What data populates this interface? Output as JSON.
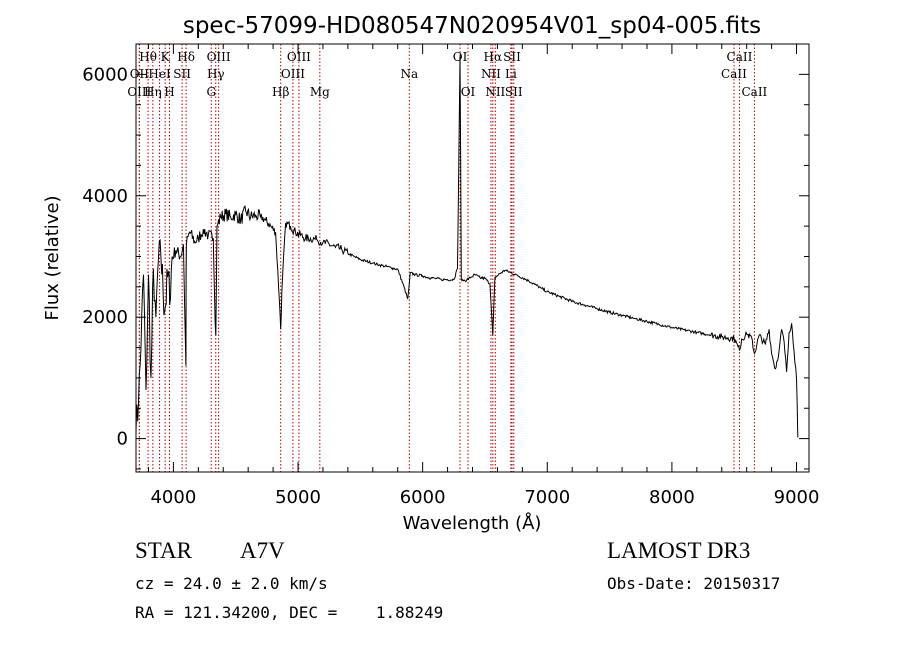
{
  "chart_data": {
    "type": "line",
    "title": "spec-57099-HD080547N020954V01_sp04-005.fits",
    "xlabel": "Wavelength (Å)",
    "ylabel": "Flux (relative)",
    "xlim": [
      3700,
      9100
    ],
    "ylim": [
      -550,
      6500
    ],
    "xticks": [
      4000,
      5000,
      6000,
      7000,
      8000,
      9000
    ],
    "xtick_labels": [
      "4000",
      "5000",
      "6000",
      "7000",
      "8000",
      "9000"
    ],
    "yticks": [
      0,
      2000,
      4000,
      6000
    ],
    "ytick_labels": [
      "0",
      "2000",
      "4000",
      "6000"
    ],
    "series": [
      {
        "name": "flux",
        "x": [
          3700,
          3720,
          3740,
          3760,
          3780,
          3800,
          3820,
          3840,
          3860,
          3880,
          3900,
          3930,
          3960,
          3970,
          3990,
          4020,
          4060,
          4080,
          4100,
          4102,
          4104,
          4130,
          4170,
          4200,
          4240,
          4280,
          4320,
          4330,
          4340,
          4345,
          4350,
          4380,
          4420,
          4460,
          4500,
          4540,
          4580,
          4620,
          4660,
          4700,
          4740,
          4780,
          4820,
          4850,
          4861,
          4870,
          4900,
          4940,
          4980,
          5020,
          5060,
          5100,
          5150,
          5200,
          5250,
          5300,
          5350,
          5400,
          5450,
          5500,
          5550,
          5600,
          5650,
          5700,
          5750,
          5800,
          5850,
          5880,
          5893,
          5900,
          5940,
          6000,
          6050,
          6100,
          6150,
          6200,
          6250,
          6280,
          6300,
          6310,
          6320,
          6340,
          6380,
          6420,
          6460,
          6500,
          6540,
          6563,
          6580,
          6620,
          6660,
          6700,
          6750,
          6800,
          6850,
          6900,
          6950,
          7000,
          7100,
          7200,
          7300,
          7400,
          7500,
          7600,
          7700,
          7800,
          7900,
          8000,
          8100,
          8200,
          8300,
          8400,
          8450,
          8500,
          8542,
          8560,
          8600,
          8640,
          8662,
          8700,
          8750,
          8780,
          8800,
          8830,
          8860,
          8880,
          8900,
          8920,
          8940,
          8960,
          8980,
          9000,
          9010
        ],
        "values": [
          100,
          600,
          1500,
          2700,
          800,
          2700,
          1000,
          2800,
          2000,
          2950,
          3000,
          2100,
          2750,
          2200,
          3000,
          3100,
          3000,
          3200,
          1200,
          2700,
          3200,
          3400,
          3250,
          3300,
          3450,
          3350,
          3300,
          2400,
          1700,
          2500,
          3500,
          3650,
          3700,
          3650,
          3700,
          3600,
          3750,
          3650,
          3680,
          3650,
          3600,
          3500,
          3400,
          2300,
          1800,
          2400,
          3550,
          3500,
          3400,
          3350,
          3300,
          3300,
          3280,
          3230,
          3200,
          3150,
          3120,
          3050,
          3000,
          2950,
          2920,
          2890,
          2860,
          2840,
          2810,
          2790,
          2500,
          2300,
          2550,
          2730,
          2700,
          2680,
          2650,
          2640,
          2620,
          2620,
          2620,
          2800,
          6300,
          2630,
          2620,
          2600,
          2650,
          2700,
          2650,
          2640,
          2550,
          1700,
          2650,
          2720,
          2770,
          2740,
          2700,
          2650,
          2600,
          2540,
          2480,
          2420,
          2340,
          2260,
          2200,
          2140,
          2080,
          2030,
          1980,
          1930,
          1880,
          1830,
          1790,
          1750,
          1710,
          1680,
          1660,
          1650,
          1450,
          1640,
          1720,
          1660,
          1400,
          1700,
          1550,
          1800,
          1400,
          1150,
          1450,
          1800,
          1600,
          1100,
          1750,
          1900,
          1450,
          1000,
          20
        ]
      }
    ],
    "lines": [
      {
        "name": "Hθ",
        "x": 3797,
        "row": 0
      },
      {
        "name": "OII",
        "x": 3727,
        "row": 1
      },
      {
        "name": "OIII",
        "x": 3727,
        "row": 2
      },
      {
        "name": "K",
        "x": 3934,
        "row": 0
      },
      {
        "name": "HeI",
        "x": 3889,
        "row": 1
      },
      {
        "name": "Hη",
        "x": 3835,
        "row": 2
      },
      {
        "name": "SII",
        "x": 4070,
        "row": 1
      },
      {
        "name": "H",
        "x": 3969,
        "row": 2
      },
      {
        "name": "Hδ",
        "x": 4102,
        "row": 0
      },
      {
        "name": "OIII",
        "x": 4363,
        "row": 0
      },
      {
        "name": "Hγ",
        "x": 4340,
        "row": 1
      },
      {
        "name": "G",
        "x": 4304,
        "row": 2
      },
      {
        "name": "Hβ",
        "x": 4861,
        "row": 2
      },
      {
        "name": "OIII",
        "x": 5007,
        "row": 0
      },
      {
        "name": "OIII",
        "x": 4959,
        "row": 1
      },
      {
        "name": "Mg",
        "x": 5175,
        "row": 2
      },
      {
        "name": "Na",
        "x": 5893,
        "row": 1
      },
      {
        "name": "OI",
        "x": 6300,
        "row": 0
      },
      {
        "name": "OI",
        "x": 6364,
        "row": 2
      },
      {
        "name": "Hα",
        "x": 6563,
        "row": 0
      },
      {
        "name": "NII",
        "x": 6548,
        "row": 1
      },
      {
        "name": "NII",
        "x": 6583,
        "row": 2
      },
      {
        "name": "SII",
        "x": 6717,
        "row": 0
      },
      {
        "name": "Li",
        "x": 6708,
        "row": 1
      },
      {
        "name": "SII",
        "x": 6731,
        "row": 2
      },
      {
        "name": "CaII",
        "x": 8542,
        "row": 0
      },
      {
        "name": "CaII",
        "x": 8498,
        "row": 1
      },
      {
        "name": "CaII",
        "x": 8662,
        "row": 2
      }
    ]
  },
  "info": {
    "object_class": "STAR",
    "subclass": "A7V",
    "survey": "LAMOST DR3",
    "cz": "cz = 24.0 ± 2.0 km/s",
    "obs_date": "Obs-Date: 20150317",
    "coords": "RA = 121.34200, DEC =    1.88249"
  },
  "colors": {
    "spectrum": "#000000",
    "line_marker": "#b40000",
    "axis": "#000000"
  }
}
